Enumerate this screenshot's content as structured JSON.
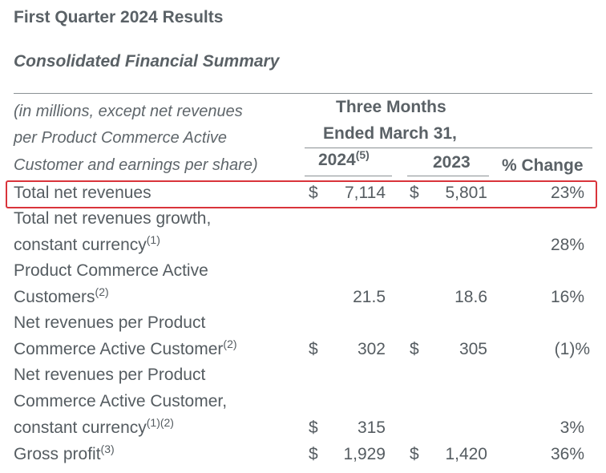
{
  "title": "First Quarter 2024 Results",
  "subtitle": "Consolidated Financial Summary",
  "note": {
    "line1": "(in millions, except net revenues",
    "line2": "per Product Commerce Active",
    "line3": "Customer and earnings per share)"
  },
  "header": {
    "group_line1": "Three Months",
    "group_line2": "Ended March 31,",
    "col_2024": "2024",
    "col_2024_note": "(5)",
    "col_2023": "2023",
    "col_change": "% Change"
  },
  "rows": [
    {
      "label1": "Total net revenues",
      "label2": "",
      "note": "",
      "d1": "$",
      "v2024": "7,114",
      "d2": "$",
      "v2023": "5,801",
      "change": "23%"
    },
    {
      "label1": "Total net revenues growth,",
      "label2": "constant currency",
      "note": "(1)",
      "d1": "",
      "v2024": "",
      "d2": "",
      "v2023": "",
      "change": "28%"
    },
    {
      "label1": "Product Commerce Active",
      "label2": "Customers",
      "note": "(2)",
      "d1": "",
      "v2024": "21.5",
      "d2": "",
      "v2023": "18.6",
      "change": "16%"
    },
    {
      "label1": "Net revenues per Product",
      "label2": "Commerce Active Customer",
      "note": "(2)",
      "d1": "$",
      "v2024": "302",
      "d2": "$",
      "v2023": "305",
      "change": "(1)%"
    },
    {
      "label1": "Net revenues per Product",
      "label1b": "Commerce Active Customer,",
      "label2": "constant currency",
      "note": "(1)(2)",
      "d1": "$",
      "v2024": "315",
      "d2": "",
      "v2023": "",
      "change": "3%"
    },
    {
      "label1": "Gross profit",
      "label2": "",
      "note": "(3)",
      "d1": "$",
      "v2024": "1,929",
      "d2": "$",
      "v2023": "1,420",
      "change": "36%"
    }
  ]
}
